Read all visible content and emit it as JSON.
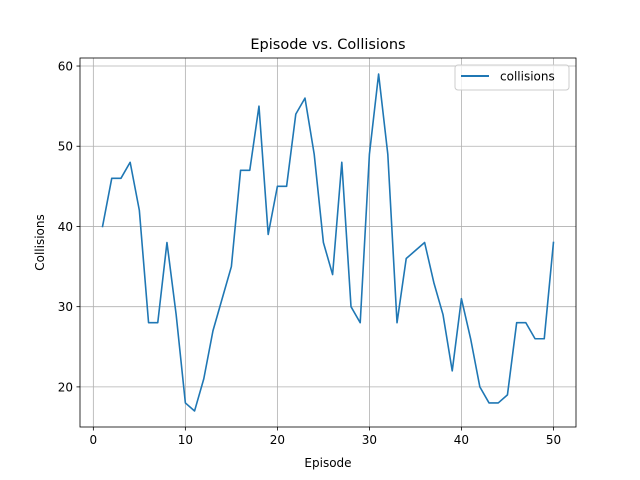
{
  "chart_data": {
    "type": "line",
    "title": "Episode vs. Collisions",
    "xlabel": "Episode",
    "ylabel": "Collisions",
    "xlim": [
      -1.45,
      52.45
    ],
    "ylim": [
      15.0,
      61.0
    ],
    "xticks": [
      0,
      10,
      20,
      30,
      40,
      50
    ],
    "yticks": [
      20,
      30,
      40,
      50,
      60
    ],
    "grid": true,
    "legend_position": "top-right",
    "series": [
      {
        "name": "collisions",
        "color": "#1f77b4",
        "x": [
          1,
          2,
          3,
          4,
          5,
          6,
          7,
          8,
          9,
          10,
          11,
          12,
          13,
          14,
          15,
          16,
          17,
          18,
          19,
          20,
          21,
          22,
          23,
          24,
          25,
          26,
          27,
          28,
          29,
          30,
          31,
          32,
          33,
          34,
          35,
          36,
          37,
          38,
          39,
          40,
          41,
          42,
          43,
          44,
          45,
          46,
          47,
          48,
          49,
          50
        ],
        "y": [
          40,
          46,
          46,
          48,
          42,
          28,
          28,
          38,
          29,
          18,
          17,
          21,
          27,
          31,
          35,
          47,
          47,
          55,
          39,
          45,
          45,
          54,
          56,
          49,
          38,
          34,
          48,
          30,
          28,
          49,
          59,
          49,
          28,
          36,
          37,
          38,
          33,
          29,
          22,
          31,
          26,
          20,
          18,
          18,
          19,
          28,
          28,
          26,
          26,
          38
        ]
      }
    ]
  }
}
